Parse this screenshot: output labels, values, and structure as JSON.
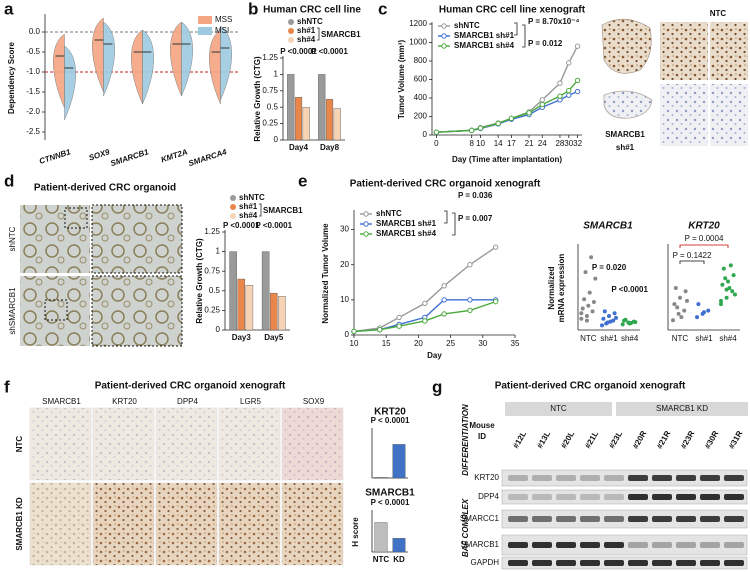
{
  "figure": {
    "panel_letters": [
      "a",
      "b",
      "c",
      "d",
      "e",
      "f",
      "g"
    ]
  },
  "images": {
    "c": {
      "labels": [
        "NTC",
        "SMARCB1",
        "sh#1"
      ]
    },
    "d": {
      "title": "Patient-derived CRC organoid",
      "rows": [
        "shNTC",
        "shSMARCB1"
      ]
    },
    "f": {
      "title": "Patient-derived CRC organoid xenograft",
      "columns": [
        "SMARCB1",
        "KRT20",
        "DPP4",
        "LGR5",
        "SOX9"
      ],
      "rows": [
        "NTC",
        "SMARCB1 KD"
      ]
    }
  },
  "blot": {
    "title": "Patient-derived CRC organoid xenograft",
    "groups": [
      "NTC",
      "SMARCB1 KD"
    ],
    "id_label": [
      "Mouse",
      "ID"
    ],
    "lanes": [
      "#12L",
      "#13L",
      "#20L",
      "#21L",
      "#23L",
      "#20R",
      "#21R",
      "#23R",
      "#30R",
      "#31R"
    ],
    "lane_colors": [
      "#111",
      "#111",
      "#111",
      "#3a5fa8",
      "#8fa6d6",
      "#111",
      "#3a5fa8",
      "#8fa6d6",
      "#111",
      "#111"
    ],
    "rows": [
      "KRT20",
      "DPP4",
      "SMARCC1",
      "SMARCB1",
      "GAPDH"
    ],
    "side_labels": [
      "DIFFERENTIATION",
      "BAF COMPLEX"
    ]
  },
  "chart_data": [
    {
      "type": "violin",
      "ylabel": "Dependency Score",
      "categories": [
        "CTNNB1",
        "SOX9",
        "SMARCB1",
        "KMT2A",
        "SMARCA4"
      ],
      "series": [
        {
          "name": "MSS",
          "color": "#f4a582",
          "values": [
            -0.6,
            -0.2,
            -0.5,
            -0.3,
            -0.5
          ]
        },
        {
          "name": "MSI",
          "color": "#9ecae1",
          "values": [
            -0.9,
            -0.3,
            -0.5,
            -0.3,
            -0.4
          ]
        }
      ],
      "ylim": [
        -2.7,
        0.4
      ],
      "yticks": [
        {
          "value": 0,
          "label": "0.0"
        },
        {
          "value": -0.5,
          "label": "-0.5"
        },
        {
          "value": -1,
          "label": "-1.0"
        },
        {
          "value": -1.5,
          "label": "-1.5"
        },
        {
          "value": -2,
          "label": "-2.0"
        },
        {
          "value": -2.5,
          "label": "-2.5"
        }
      ],
      "reference_lines": [
        {
          "value": 0,
          "color": "#777777"
        },
        {
          "value": -1,
          "color": "#cc2222"
        }
      ],
      "legend": "upper right"
    },
    {
      "type": "bar",
      "title": "Human CRC cell line",
      "ylabel": "Relative Growth (CTG)",
      "categories": [
        "Day4",
        "Day8"
      ],
      "series": [
        {
          "name": "shNTC",
          "color": "#9a9a9a",
          "values": [
            1.0,
            1.0
          ]
        },
        {
          "name": "sh#1",
          "color": "#e9874b",
          "values": [
            0.65,
            0.62
          ]
        },
        {
          "name": "sh#4",
          "color": "#f6d3b5",
          "values": [
            0.5,
            0.48
          ]
        }
      ],
      "legend_group": "SMARCB1",
      "ylim": [
        0,
        1.25
      ],
      "yticks": [
        0,
        0.25,
        0.5,
        0.75,
        1,
        1.25
      ],
      "annotations": [
        "P <0.0001",
        "P <0.0001"
      ],
      "annotation_colors": [
        "#cc0000",
        "#cc0000"
      ]
    },
    {
      "type": "line",
      "title": "Human CRC cell line xenograft",
      "ylabel": "Tumor Volume (mm³)",
      "xlabel": "Day (Time after implantation)",
      "x": [
        0,
        8,
        10,
        14,
        17,
        21,
        24,
        28,
        30,
        32
      ],
      "series": [
        {
          "name": "shNTC",
          "color": "#999999",
          "values": [
            30,
            50,
            80,
            130,
            180,
            250,
            380,
            560,
            780,
            960
          ]
        },
        {
          "name": "SMARCB1 sh#1",
          "color": "#3f6fd1",
          "values": [
            30,
            50,
            70,
            120,
            170,
            220,
            300,
            380,
            430,
            470
          ]
        },
        {
          "name": "SMARCB1 sh#4",
          "color": "#4caa3c",
          "values": [
            30,
            50,
            75,
            125,
            180,
            240,
            330,
            420,
            480,
            590
          ]
        }
      ],
      "xlim": [
        -1,
        33
      ],
      "xticks": [
        0,
        8,
        10,
        14,
        17,
        21,
        24,
        28,
        30,
        32
      ],
      "ylim": [
        0,
        1200
      ],
      "yticks": [
        0,
        200,
        400,
        600,
        800,
        1000,
        1200
      ],
      "annotations": [
        "P = 8.70x10⁻⁴",
        "P = 0.012"
      ],
      "annotation_colors": [
        "#cc0000",
        "#cc0000"
      ],
      "legend": "upper left"
    },
    {
      "type": "bar",
      "ylabel": "Relative Growth (CTG)",
      "categories": [
        "Day3",
        "Day5"
      ],
      "series": [
        {
          "name": "shNTC",
          "color": "#9a9a9a",
          "values": [
            1.0,
            1.0
          ]
        },
        {
          "name": "sh#1",
          "color": "#e9874b",
          "values": [
            0.65,
            0.47
          ]
        },
        {
          "name": "sh#4",
          "color": "#f6d3b5",
          "values": [
            0.57,
            0.43
          ]
        }
      ],
      "legend_group": "SMARCB1",
      "ylim": [
        0,
        1.25
      ],
      "yticks": [
        0,
        0.25,
        0.5,
        0.75,
        1,
        1.25
      ],
      "annotations": [
        "P <0.0001",
        "P <0.0001"
      ],
      "annotation_colors": [
        "#cc0000",
        "#cc0000"
      ]
    },
    {
      "type": "line",
      "title": "Patient-derived CRC organoid xenograft",
      "ylabel": "Normalized Tumor Volume",
      "xlabel": "Day",
      "x": [
        10,
        14,
        17,
        21,
        24,
        28,
        32
      ],
      "series": [
        {
          "name": "shNTC",
          "color": "#999999",
          "values": [
            1,
            2,
            5,
            9,
            14,
            20,
            25
          ]
        },
        {
          "name": "SMARCB1 sh#1",
          "color": "#3f6fd1",
          "values": [
            1,
            1.5,
            3,
            5,
            10,
            10,
            10
          ]
        },
        {
          "name": "SMARCB1 sh#4",
          "color": "#4caa3c",
          "values": [
            1,
            1.5,
            2.5,
            4,
            6,
            7,
            9.5
          ]
        }
      ],
      "xlim": [
        10,
        35
      ],
      "xticks": [
        10,
        15,
        20,
        25,
        30,
        35
      ],
      "ylim": [
        0,
        35
      ],
      "yticks": [
        0,
        10,
        20,
        30
      ],
      "annotations": [
        "P = 0.036",
        "P = 0.007"
      ],
      "annotation_colors": [
        "#cc0000",
        "#cc0000"
      ],
      "legend": "upper left"
    },
    {
      "type": "strip",
      "title": "SMARCB1",
      "ylabel": [
        "Normalized",
        "mRNA expression"
      ],
      "categories": [
        "NTC",
        "sh#1",
        "sh#4"
      ],
      "colors": [
        "#888888",
        "#3f6fd1",
        "#2fa84f"
      ],
      "values": [
        [
          1.2,
          1.5,
          2.0,
          2.3,
          2.6,
          3.0,
          3.3,
          4.0,
          5.5,
          6.2,
          7.8,
          1.8,
          1.0
        ],
        [
          0.5,
          0.8,
          1.0,
          1.2,
          1.5,
          1.8,
          2.0,
          0.9,
          1.3,
          0.7
        ],
        [
          0.6,
          0.8,
          0.9,
          1.0,
          0.7,
          0.85,
          1.1,
          0.75
        ]
      ],
      "ylim": [
        0,
        9
      ],
      "annotations": [
        "P = 0.020",
        "P <0.0001"
      ],
      "annotation_colors": [
        "#cc0000",
        "#cc0000"
      ]
    },
    {
      "type": "strip",
      "title": "KRT20",
      "categories": [
        "NTC",
        "sh#1",
        "sh#4"
      ],
      "colors": [
        "#888888",
        "#3f6fd1",
        "#2fa84f"
      ],
      "values": [
        [
          0.3,
          0.5,
          0.6,
          0.8,
          1.0,
          1.2,
          1.3,
          0.4,
          0.9,
          0.7
        ],
        [
          0.4,
          0.5,
          0.6,
          0.8,
          0.55
        ],
        [
          0.8,
          1.0,
          1.2,
          1.4,
          1.5,
          1.7,
          1.9,
          1.3,
          1.1,
          1.6,
          2.0,
          0.9,
          1.25
        ]
      ],
      "ylim": [
        0,
        2.6
      ],
      "annotations": [
        "P = 0.1422",
        "P = 0.0004"
      ],
      "annotation_colors": [
        "#111111",
        "#cc0000"
      ]
    },
    {
      "type": "bar",
      "title": "KRT20",
      "categories": [
        null,
        null
      ],
      "series": [
        {
          "color": "#a9a9a9",
          "values": [
            0.05,
            2.1
          ]
        }
      ],
      "bar_colors": [
        "#bdbdbd",
        "#3f72c4"
      ],
      "ylim": [
        0,
        3
      ],
      "annotations": [
        "P < 0.0001"
      ],
      "annotation_colors": [
        "#cc0000"
      ]
    },
    {
      "type": "bar",
      "title": "SMARCB1",
      "ylabel": "H score",
      "categories": [
        "NTC",
        "KD"
      ],
      "series": [
        {
          "color": "#a9a9a9",
          "values": [
            2.8,
            1.3
          ]
        }
      ],
      "bar_colors": [
        "#bdbdbd",
        "#3f72c4"
      ],
      "ylim": [
        0,
        3.8
      ],
      "annotations": [
        "P < 0.0001"
      ],
      "annotation_colors": [
        "#cc0000"
      ]
    }
  ]
}
